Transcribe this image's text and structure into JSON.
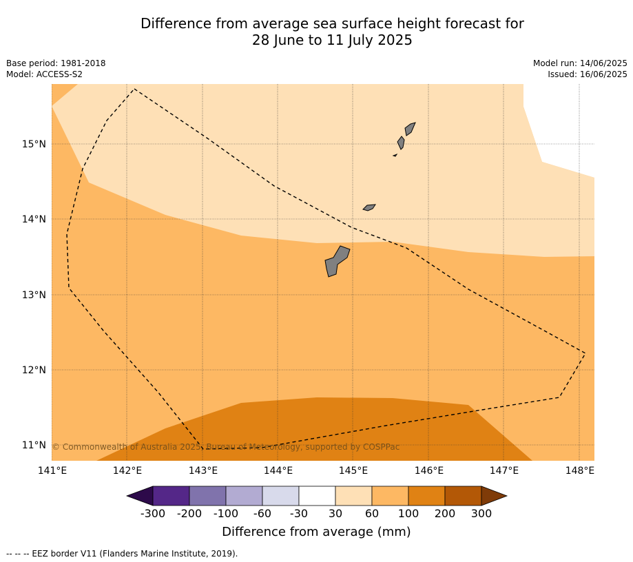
{
  "title_line1": "Difference from average sea surface height forecast for",
  "title_line2": "28 June to 11 July 2025",
  "base_period": "Base period: 1981-2018",
  "model": "Model: ACCESS-S2",
  "model_run": "Model run: 14/06/2025",
  "issued": "Issued: 16/06/2025",
  "copyright": "© Commonwealth of Australia 2025, Bureau of Meteorology, supported by COSPPac",
  "lat_labels": [
    "15°N",
    "14°N",
    "13°N",
    "12°N",
    "11°N"
  ],
  "lon_labels": [
    "141°E",
    "142°E",
    "143°E",
    "144°E",
    "145°E",
    "146°E",
    "147°E",
    "148°E"
  ],
  "colorbar": {
    "title": "Difference from average (mm)",
    "ticks": [
      "-300",
      "-200",
      "-100",
      "-60",
      "-30",
      "30",
      "60",
      "100",
      "200",
      "300"
    ],
    "colors": [
      "#2d0a4a",
      "#542788",
      "#8073ac",
      "#b2abd2",
      "#d8daeb",
      "#ffffff",
      "#fee0b6",
      "#fdb863",
      "#e08214",
      "#b35806",
      "#7f3b08"
    ]
  },
  "footnote": "--  --  -- EEZ border V11 (Flanders Marine Institute, 2019).",
  "map_regions": [
    {
      "name": "30 to 60 mm",
      "color": "#fee0b6"
    },
    {
      "name": "60 to 100 mm",
      "color": "#fdb863"
    },
    {
      "name": "100 to 200 mm",
      "color": "#e08214"
    }
  ]
}
